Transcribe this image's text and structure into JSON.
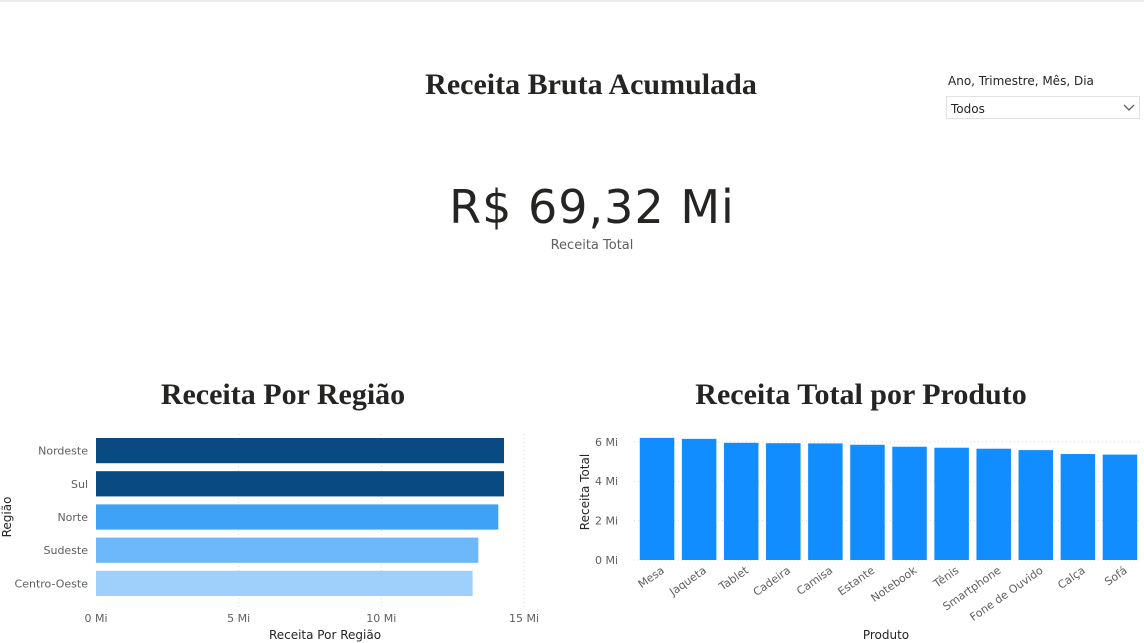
{
  "header": {
    "title": "Receita Bruta Acumulada"
  },
  "filter": {
    "label": "Ano, Trimestre, Mês, Dia",
    "value": "Todos",
    "icon": "chevron-down-icon"
  },
  "kpi": {
    "value": "R$ 69,32 Mi",
    "label": "Receita Total"
  },
  "region_chart": {
    "title": "Receita Por Região"
  },
  "product_chart": {
    "title": "Receita Total por Produto"
  },
  "chart_data": [
    {
      "type": "bar",
      "orientation": "horizontal",
      "xlabel": "Receita Por Região",
      "ylabel": "Região",
      "categories": [
        "Nordeste",
        "Sul",
        "Norte",
        "Sudeste",
        "Centro-Oeste"
      ],
      "values": [
        14.3,
        14.3,
        14.1,
        13.4,
        13.2
      ],
      "unit": "Mi",
      "xlim": [
        0,
        15
      ],
      "ticks": [
        "0 Mi",
        "5 Mi",
        "10 Mi",
        "15 Mi"
      ],
      "tick_values": [
        0,
        5,
        10,
        15
      ],
      "colors": [
        "#0a4a82",
        "#0a4a82",
        "#3ea2f7",
        "#6cb8fa",
        "#9fd0fc"
      ],
      "grid": true
    },
    {
      "type": "bar",
      "orientation": "vertical",
      "xlabel": "Produto",
      "ylabel": "Receita Total",
      "categories": [
        "Mesa",
        "Jaqueta",
        "Tablet",
        "Cadeira",
        "Camisa",
        "Estante",
        "Notebook",
        "Tênis",
        "Smartphone",
        "Fone de Ouvido",
        "Calça",
        "Sofá"
      ],
      "values": [
        6.2,
        6.15,
        5.95,
        5.93,
        5.92,
        5.85,
        5.75,
        5.7,
        5.65,
        5.58,
        5.38,
        5.35
      ],
      "unit": "Mi",
      "ylim": [
        0,
        6.6
      ],
      "ticks": [
        "0 Mi",
        "2 Mi",
        "4 Mi",
        "6 Mi"
      ],
      "tick_values": [
        0,
        2,
        4,
        6
      ],
      "color": "#118dff",
      "grid": true
    }
  ]
}
